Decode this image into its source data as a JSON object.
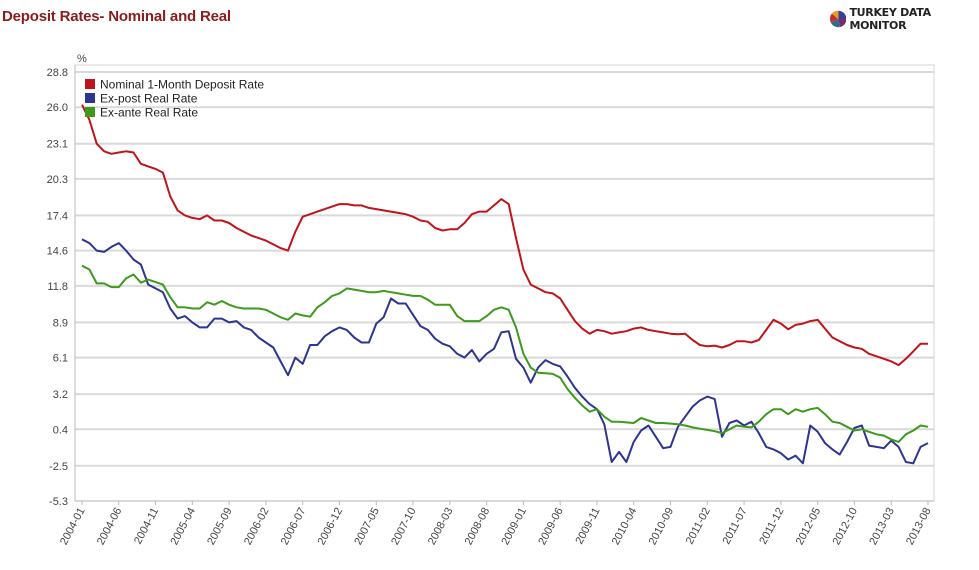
{
  "title": "Deposit Rates- Nominal and Real",
  "logo": {
    "text": "TURKEY DATA MONITOR",
    "icon": "pie-chart-logo-icon"
  },
  "chart_data": {
    "type": "line",
    "title": "Deposit Rates- Nominal and Real",
    "ylabel": "%",
    "xlabel": "",
    "ylim": [
      -5.3,
      28.8
    ],
    "yticks": [
      28.8,
      26.0,
      23.1,
      20.3,
      17.4,
      14.6,
      11.8,
      8.9,
      6.1,
      3.2,
      0.4,
      -2.5,
      -5.3
    ],
    "ytick_labels": [
      "28.8",
      "26.0",
      "23.1",
      "20.3",
      "17.4",
      "14.6",
      "11.8",
      "8.9",
      "6.1",
      "3.2",
      "0.4",
      "-2.5",
      "-5.3"
    ],
    "xticks": [
      "2004-01",
      "2004-06",
      "2004-11",
      "2005-04",
      "2005-09",
      "2006-02",
      "2006-07",
      "2006-12",
      "2007-05",
      "2007-10",
      "2008-03",
      "2008-08",
      "2009-01",
      "2009-06",
      "2009-11",
      "2010-04",
      "2010-09",
      "2011-02",
      "2011-07",
      "2011-12",
      "2012-05",
      "2012-10",
      "2013-03",
      "2013-08"
    ],
    "grid": true,
    "legend_position": "top-left",
    "x": [
      "2004-01",
      "2004-02",
      "2004-03",
      "2004-04",
      "2004-05",
      "2004-06",
      "2004-07",
      "2004-08",
      "2004-09",
      "2004-10",
      "2004-11",
      "2004-12",
      "2005-01",
      "2005-02",
      "2005-03",
      "2005-04",
      "2005-05",
      "2005-06",
      "2005-07",
      "2005-08",
      "2005-09",
      "2005-10",
      "2005-11",
      "2005-12",
      "2006-01",
      "2006-02",
      "2006-03",
      "2006-04",
      "2006-05",
      "2006-06",
      "2006-07",
      "2006-08",
      "2006-09",
      "2006-10",
      "2006-11",
      "2006-12",
      "2007-01",
      "2007-02",
      "2007-03",
      "2007-04",
      "2007-05",
      "2007-06",
      "2007-07",
      "2007-08",
      "2007-09",
      "2007-10",
      "2007-11",
      "2007-12",
      "2008-01",
      "2008-02",
      "2008-03",
      "2008-04",
      "2008-05",
      "2008-06",
      "2008-07",
      "2008-08",
      "2008-09",
      "2008-10",
      "2008-11",
      "2008-12",
      "2009-01",
      "2009-02",
      "2009-03",
      "2009-04",
      "2009-05",
      "2009-06",
      "2009-07",
      "2009-08",
      "2009-09",
      "2009-10",
      "2009-11",
      "2009-12",
      "2010-01",
      "2010-02",
      "2010-03",
      "2010-04",
      "2010-05",
      "2010-06",
      "2010-07",
      "2010-08",
      "2010-09",
      "2010-10",
      "2010-11",
      "2010-12",
      "2011-01",
      "2011-02",
      "2011-03",
      "2011-04",
      "2011-05",
      "2011-06",
      "2011-07",
      "2011-08",
      "2011-09",
      "2011-10",
      "2011-11",
      "2011-12",
      "2012-01",
      "2012-02",
      "2012-03",
      "2012-04",
      "2012-05",
      "2012-06",
      "2012-07",
      "2012-08",
      "2012-09",
      "2012-10",
      "2012-11",
      "2012-12",
      "2013-01",
      "2013-02",
      "2013-03",
      "2013-04",
      "2013-05",
      "2013-06",
      "2013-07",
      "2013-08"
    ],
    "series": [
      {
        "name": "Nominal 1-Month Deposit Rate",
        "color": "#c0141a",
        "values": [
          26.2,
          25.0,
          23.1,
          22.5,
          22.3,
          22.4,
          22.5,
          22.4,
          21.5,
          21.3,
          21.1,
          20.8,
          18.9,
          17.8,
          17.4,
          17.2,
          17.1,
          17.4,
          17.0,
          17.0,
          16.8,
          16.4,
          16.1,
          15.8,
          15.6,
          15.4,
          15.1,
          14.8,
          14.6,
          16.1,
          17.3,
          17.5,
          17.7,
          17.9,
          18.1,
          18.3,
          18.3,
          18.2,
          18.2,
          18.0,
          17.9,
          17.8,
          17.7,
          17.6,
          17.5,
          17.3,
          17.0,
          16.9,
          16.4,
          16.2,
          16.3,
          16.3,
          16.8,
          17.5,
          17.7,
          17.7,
          18.2,
          18.7,
          18.3,
          15.6,
          13.1,
          11.9,
          11.6,
          11.3,
          11.2,
          10.8,
          9.9,
          9.0,
          8.4,
          8.0,
          8.3,
          8.2,
          8.0,
          8.1,
          8.2,
          8.4,
          8.5,
          8.3,
          8.2,
          8.1,
          8.0,
          7.95,
          8.0,
          7.5,
          7.1,
          7.0,
          7.05,
          6.9,
          7.1,
          7.4,
          7.4,
          7.3,
          7.5,
          8.3,
          9.1,
          8.8,
          8.35,
          8.7,
          8.8,
          9.0,
          9.1,
          8.4,
          7.7,
          7.4,
          7.1,
          6.9,
          6.8,
          6.4,
          6.2,
          6.0,
          5.8,
          5.5,
          6.0,
          6.6,
          7.2,
          7.2
        ]
      },
      {
        "name": "Ex-post Real Rate",
        "color": "#2d3590",
        "values": [
          15.5,
          15.2,
          14.6,
          14.5,
          14.9,
          15.2,
          14.6,
          13.9,
          13.5,
          11.9,
          11.6,
          11.3,
          10.0,
          9.2,
          9.4,
          8.9,
          8.5,
          8.5,
          9.2,
          9.2,
          8.9,
          9.0,
          8.5,
          8.3,
          7.7,
          7.3,
          6.9,
          5.8,
          4.7,
          6.1,
          5.6,
          7.1,
          7.1,
          7.8,
          8.2,
          8.5,
          8.3,
          7.7,
          7.3,
          7.3,
          8.8,
          9.3,
          10.8,
          10.4,
          10.4,
          9.5,
          8.6,
          8.3,
          7.6,
          7.2,
          7.0,
          6.4,
          6.1,
          6.7,
          5.8,
          6.4,
          6.8,
          8.1,
          8.2,
          6.0,
          5.3,
          4.1,
          5.3,
          5.9,
          5.6,
          5.4,
          4.6,
          3.7,
          3.0,
          2.4,
          2.0,
          0.8,
          -2.2,
          -1.4,
          -2.2,
          -0.6,
          0.3,
          0.7,
          -0.2,
          -1.1,
          -1.0,
          0.6,
          1.4,
          2.2,
          2.7,
          3.0,
          2.8,
          -0.2,
          0.9,
          1.1,
          0.7,
          1.0,
          0.1,
          -1.0,
          -1.2,
          -1.5,
          -2.0,
          -1.7,
          -2.3,
          0.7,
          0.2,
          -0.7,
          -1.2,
          -1.6,
          -0.6,
          0.5,
          0.7,
          -0.9,
          -1.0,
          -1.1,
          -0.5,
          -1.0,
          -2.2,
          -2.3,
          -1.0,
          -0.7
        ]
      },
      {
        "name": "Ex-ante Real Rate",
        "color": "#3d9a1c",
        "values": [
          13.4,
          13.1,
          12.0,
          12.0,
          11.7,
          11.7,
          12.4,
          12.7,
          12.05,
          12.3,
          12.1,
          11.9,
          10.9,
          10.1,
          10.1,
          10.0,
          10.0,
          10.5,
          10.3,
          10.6,
          10.3,
          10.1,
          10.0,
          10.0,
          10.0,
          9.9,
          9.6,
          9.3,
          9.1,
          9.6,
          9.45,
          9.35,
          10.1,
          10.5,
          11.0,
          11.2,
          11.6,
          11.5,
          11.4,
          11.3,
          11.3,
          11.4,
          11.3,
          11.2,
          11.1,
          11.0,
          11.0,
          10.7,
          10.3,
          10.3,
          10.3,
          9.4,
          9.0,
          9.0,
          9.0,
          9.4,
          9.9,
          10.1,
          9.9,
          8.5,
          6.4,
          5.3,
          4.9,
          4.85,
          4.8,
          4.5,
          3.6,
          2.9,
          2.3,
          1.8,
          2.0,
          1.4,
          1.0,
          1.0,
          0.95,
          0.9,
          1.3,
          1.1,
          0.9,
          0.9,
          0.85,
          0.8,
          0.7,
          0.55,
          0.45,
          0.35,
          0.25,
          0.1,
          0.4,
          0.7,
          0.6,
          0.55,
          1.0,
          1.6,
          2.0,
          2.0,
          1.6,
          2.0,
          1.8,
          2.0,
          2.1,
          1.6,
          1.0,
          0.9,
          0.6,
          0.3,
          0.4,
          0.2,
          0.0,
          -0.1,
          -0.4,
          -0.6,
          0.0,
          0.3,
          0.7,
          0.6
        ]
      }
    ]
  }
}
